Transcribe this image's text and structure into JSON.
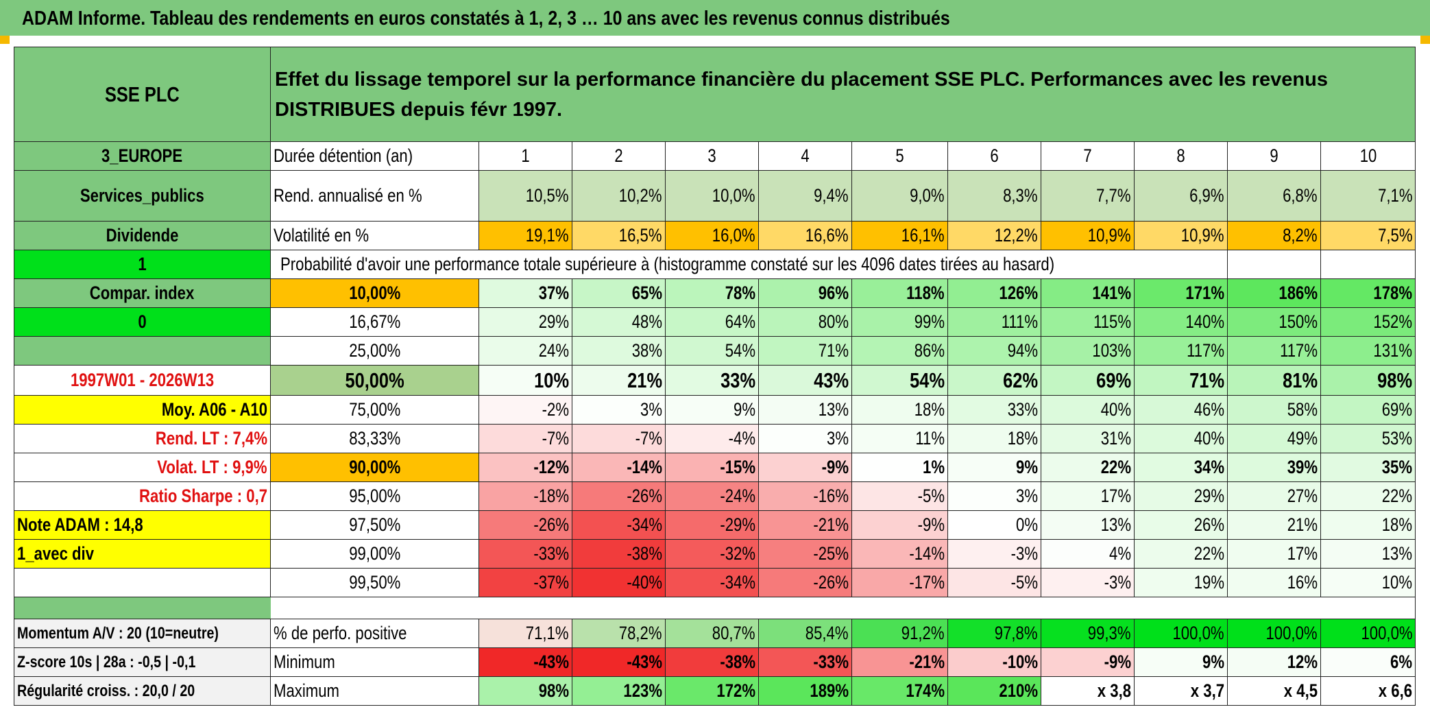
{
  "title": "ADAM Informe. Tableau des rendements en euros constatés à 1, 2, 3 … 10 ans avec les revenus connus distribués",
  "header": {
    "name": "SSE PLC",
    "description": "Effet du lissage temporel sur la performance financière du placement SSE PLC. Performances avec les revenus DISTRIBUES depuis févr 1997."
  },
  "left": {
    "region": "3_EUROPE",
    "sector": "Services_publics",
    "income": "Dividende",
    "one": "1",
    "compar_index": "Compar. index",
    "zero": "0",
    "period": "1997W01 - 2026W13",
    "moy": "Moy. A06 - A10",
    "rend_lt": "Rend. LT :   7,4%",
    "volat_lt": "Volat. LT :   9,9%",
    "sharpe": "Ratio Sharpe :    0,7",
    "note": "Note ADAM : 14,8",
    "avec_div": "1_avec div",
    "momentum": "Momentum A/V : 20 (10=neutre)",
    "zscore": "Z-score 10s | 28a : -0,5 | -0,1",
    "regularite": "Régularité croiss. : 20,0 / 20"
  },
  "labels": {
    "duree": "Durée détention (an)",
    "rend": "Rend. annualisé en %",
    "volat": "Volatilité en %",
    "proba": "Probabilité d'avoir une performance totale supérieure à (histogramme constaté sur les 4096 dates tirées au hasard)",
    "positive": "% de perfo. positive",
    "minimum": "Minimum",
    "maximum": "Maximum"
  },
  "years": [
    "1",
    "2",
    "3",
    "4",
    "5",
    "6",
    "7",
    "8",
    "9",
    "10"
  ],
  "rend": [
    "10,5%",
    "10,2%",
    "10,0%",
    "9,4%",
    "9,0%",
    "8,3%",
    "7,7%",
    "6,9%",
    "6,8%",
    "7,1%"
  ],
  "volat": [
    "19,1%",
    "16,5%",
    "16,0%",
    "16,6%",
    "16,1%",
    "12,2%",
    "10,9%",
    "10,9%",
    "8,2%",
    "7,5%"
  ],
  "probabilities": [
    {
      "pct": "10,00%",
      "values": [
        "37%",
        "65%",
        "78%",
        "96%",
        "118%",
        "126%",
        "141%",
        "171%",
        "186%",
        "178%"
      ]
    },
    {
      "pct": "16,67%",
      "values": [
        "29%",
        "48%",
        "64%",
        "80%",
        "99%",
        "111%",
        "115%",
        "140%",
        "150%",
        "152%"
      ]
    },
    {
      "pct": "25,00%",
      "values": [
        "24%",
        "38%",
        "54%",
        "71%",
        "86%",
        "94%",
        "103%",
        "117%",
        "117%",
        "131%"
      ]
    },
    {
      "pct": "50,00%",
      "values": [
        "10%",
        "21%",
        "33%",
        "43%",
        "54%",
        "62%",
        "69%",
        "71%",
        "81%",
        "98%"
      ]
    },
    {
      "pct": "75,00%",
      "values": [
        "-2%",
        "3%",
        "9%",
        "13%",
        "18%",
        "33%",
        "40%",
        "46%",
        "58%",
        "69%"
      ]
    },
    {
      "pct": "83,33%",
      "values": [
        "-7%",
        "-7%",
        "-4%",
        "3%",
        "11%",
        "18%",
        "31%",
        "40%",
        "49%",
        "53%"
      ]
    },
    {
      "pct": "90,00%",
      "values": [
        "-12%",
        "-14%",
        "-15%",
        "-9%",
        "1%",
        "9%",
        "22%",
        "34%",
        "39%",
        "35%"
      ]
    },
    {
      "pct": "95,00%",
      "values": [
        "-18%",
        "-26%",
        "-24%",
        "-16%",
        "-5%",
        "3%",
        "17%",
        "29%",
        "27%",
        "22%"
      ]
    },
    {
      "pct": "97,50%",
      "values": [
        "-26%",
        "-34%",
        "-29%",
        "-21%",
        "-9%",
        "0%",
        "13%",
        "26%",
        "21%",
        "18%"
      ]
    },
    {
      "pct": "99,00%",
      "values": [
        "-33%",
        "-38%",
        "-32%",
        "-25%",
        "-14%",
        "-3%",
        "4%",
        "22%",
        "17%",
        "13%"
      ]
    },
    {
      "pct": "99,50%",
      "values": [
        "-37%",
        "-40%",
        "-34%",
        "-26%",
        "-17%",
        "-5%",
        "-3%",
        "19%",
        "16%",
        "10%"
      ]
    }
  ],
  "positive": [
    "71,1%",
    "78,2%",
    "80,7%",
    "85,4%",
    "91,2%",
    "97,8%",
    "99,3%",
    "100,0%",
    "100,0%",
    "100,0%"
  ],
  "minimum": [
    "-43%",
    "-43%",
    "-38%",
    "-33%",
    "-21%",
    "-10%",
    "-9%",
    "9%",
    "12%",
    "6%"
  ],
  "maximum": [
    "98%",
    "123%",
    "172%",
    "189%",
    "174%",
    "210%",
    "x 3,8",
    "x 3,7",
    "x 4,5",
    "x 6,6"
  ],
  "colors": {
    "header_green": "#7ec87e",
    "bright_green": "#00e01a",
    "highlight_yellow": "#ffff00",
    "volat_orange": "#ffc000",
    "label_red": "#e01010"
  }
}
